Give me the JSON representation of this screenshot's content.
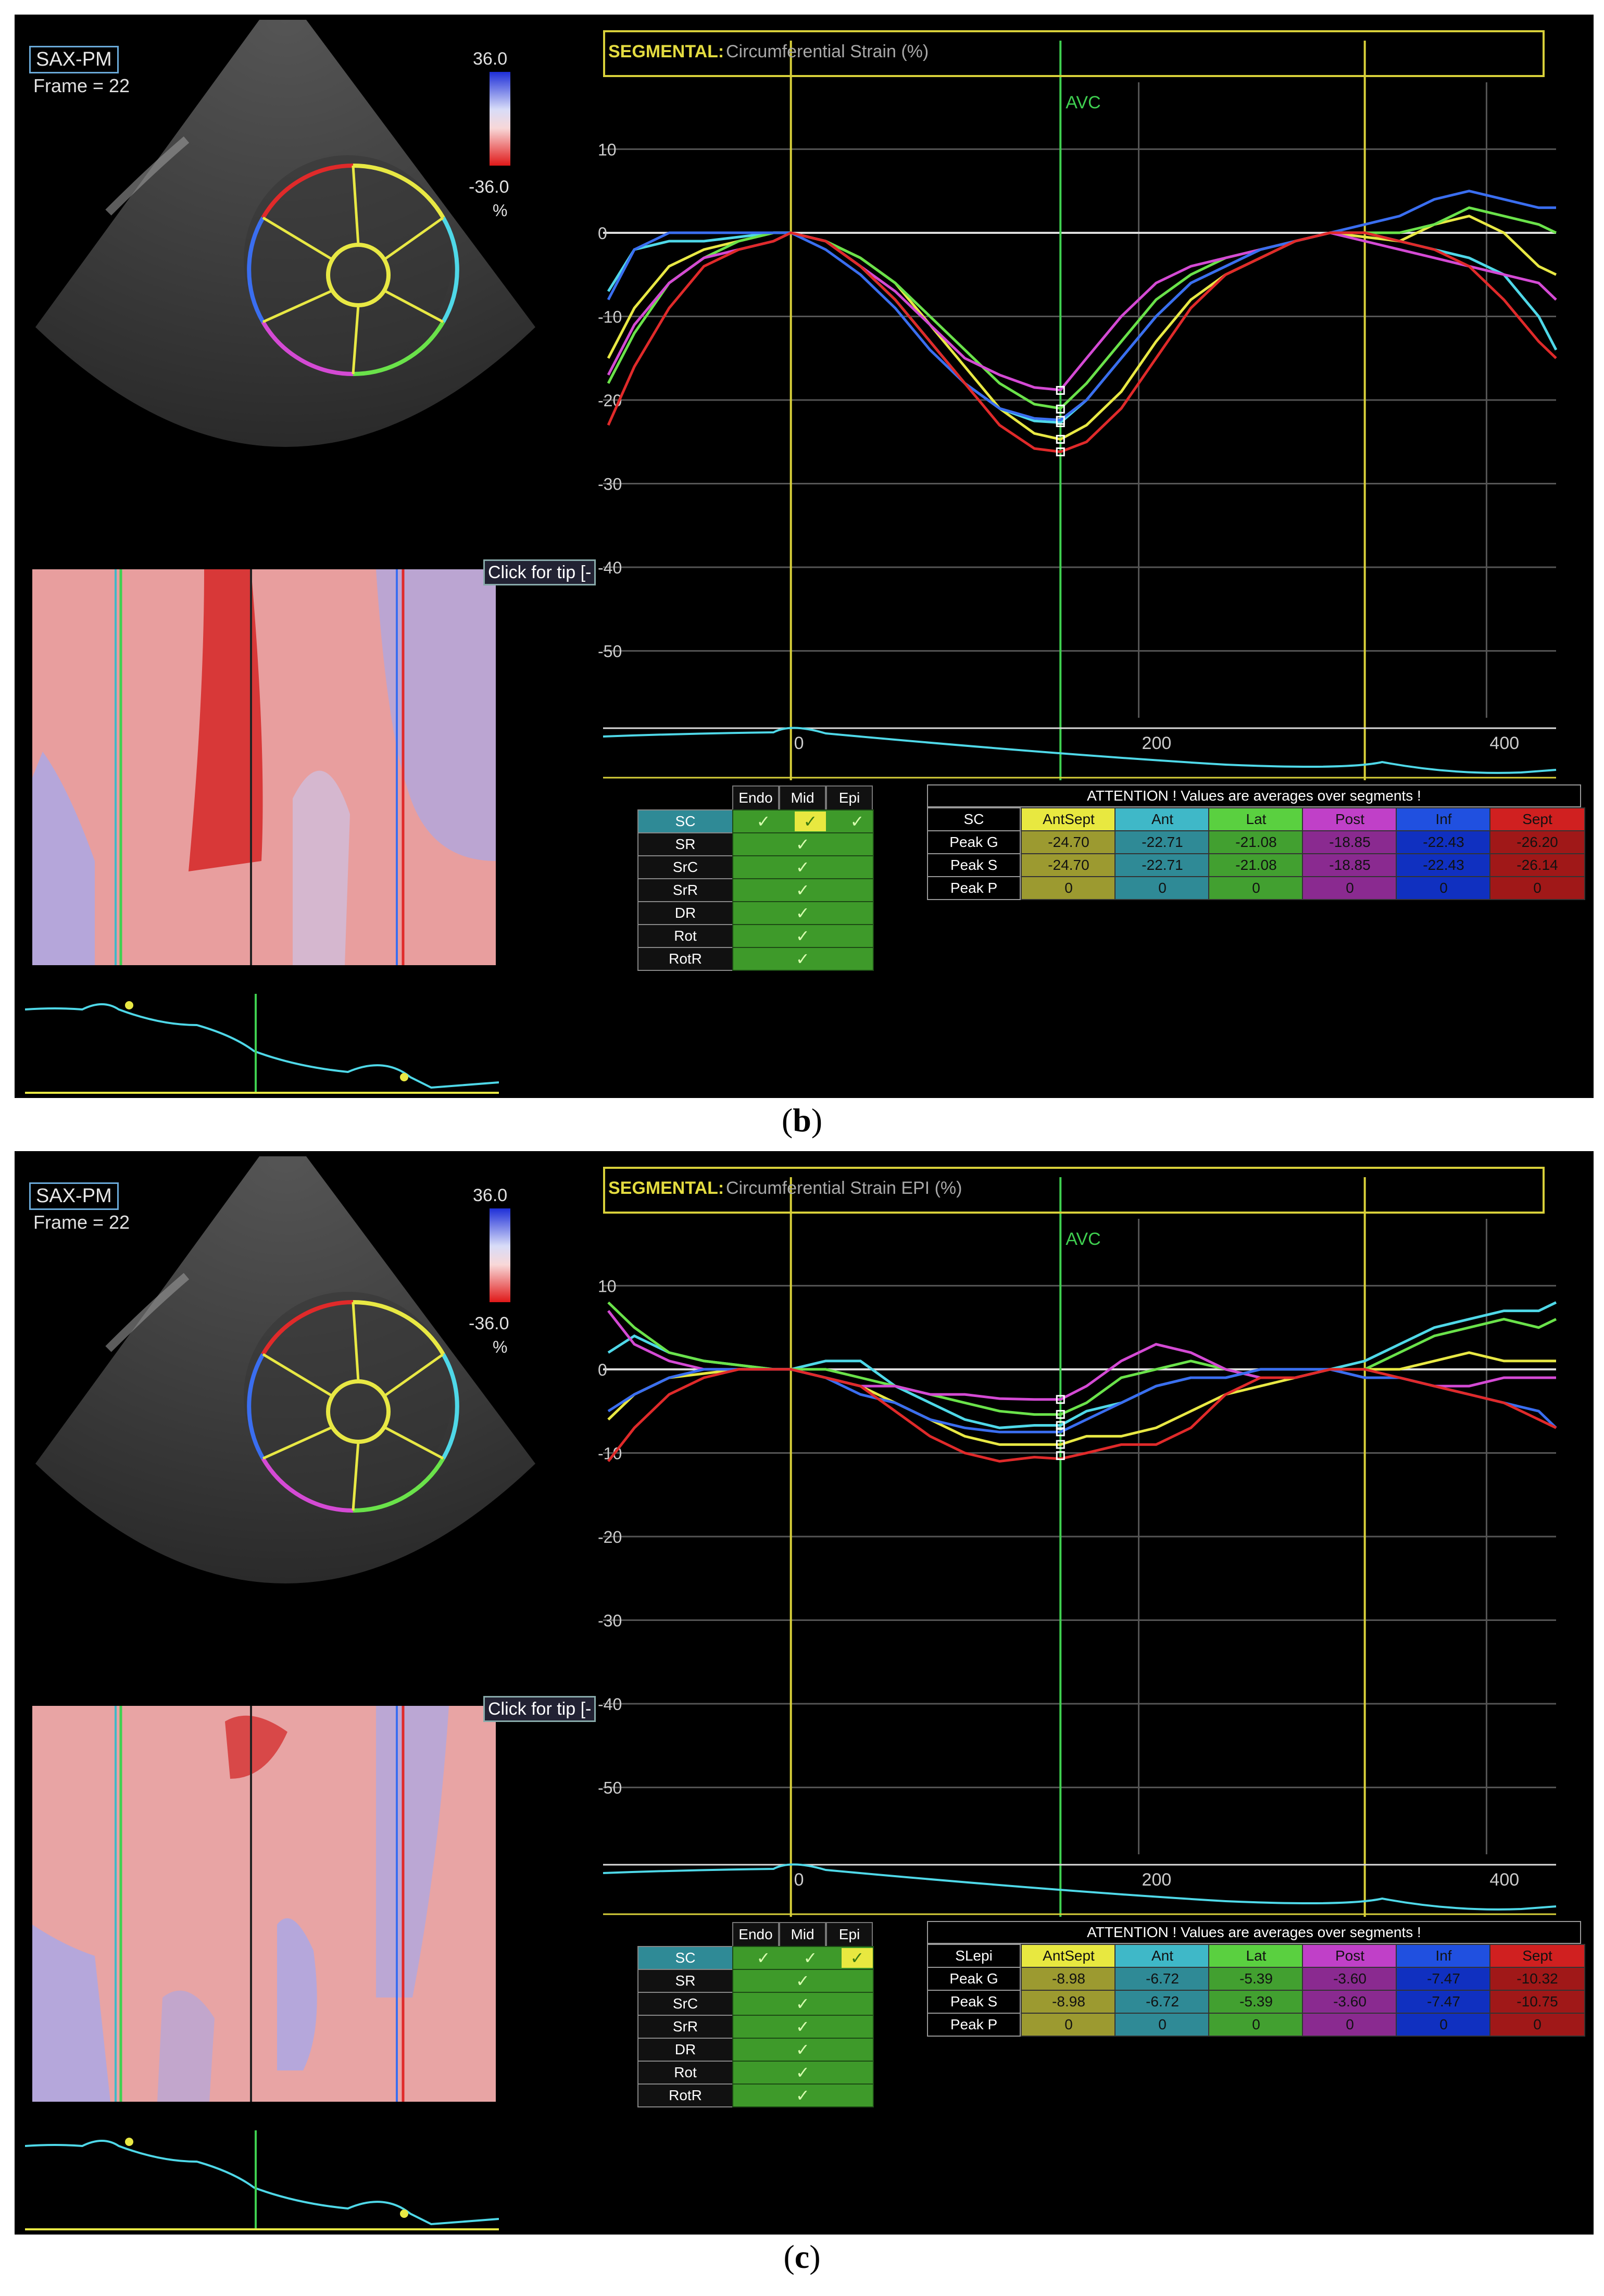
{
  "captions": {
    "b": "b",
    "c": "c"
  },
  "panels": [
    {
      "id": "b",
      "view_label": "SAX-PM",
      "frame_label": "Frame = 22",
      "colorbar": {
        "max": "36.0",
        "min": "-36.0",
        "unit": "%"
      },
      "click_tip": "Click for tip [-",
      "title_key": "SEGMENTAL:",
      "title_value": "Circumferential Strain (%)",
      "avc_label": "AVC",
      "y_ticks": [
        "10",
        "0",
        "-10",
        "-20",
        "-30",
        "-40",
        "-50"
      ],
      "x_ticks": [
        "0",
        "200",
        "400"
      ],
      "layer_table": {
        "headers": [
          "Endo",
          "Mid",
          "Epi"
        ],
        "rows": [
          "SC",
          "SR",
          "SrC",
          "SrR",
          "DR",
          "Rot",
          "RotR"
        ],
        "selected_layer": "Mid"
      },
      "attention": {
        "header": "ATTENTION !  Values are averages over segments !",
        "corner": "SC",
        "segments": [
          "AntSept",
          "Ant",
          "Lat",
          "Post",
          "Inf",
          "Sept"
        ],
        "rows": [
          {
            "label": "Peak G",
            "values": [
              "-24.70",
              "-22.71",
              "-21.08",
              "-18.85",
              "-22.43",
              "-26.20"
            ]
          },
          {
            "label": "Peak S",
            "values": [
              "-24.70",
              "-22.71",
              "-21.08",
              "-18.85",
              "-22.43",
              "-26.14"
            ]
          },
          {
            "label": "Peak P",
            "values": [
              "0",
              "0",
              "0",
              "0",
              "0",
              "0"
            ]
          }
        ]
      }
    },
    {
      "id": "c",
      "view_label": "SAX-PM",
      "frame_label": "Frame = 22",
      "colorbar": {
        "max": "36.0",
        "min": "-36.0",
        "unit": "%"
      },
      "click_tip": "Click for tip [-",
      "title_key": "SEGMENTAL:",
      "title_value": "Circumferential Strain EPI (%)",
      "avc_label": "AVC",
      "y_ticks": [
        "10",
        "0",
        "-10",
        "-20",
        "-30",
        "-40",
        "-50"
      ],
      "x_ticks": [
        "0",
        "200",
        "400"
      ],
      "layer_table": {
        "headers": [
          "Endo",
          "Mid",
          "Epi"
        ],
        "rows": [
          "SC",
          "SR",
          "SrC",
          "SrR",
          "DR",
          "Rot",
          "RotR"
        ],
        "selected_layer": "Epi"
      },
      "attention": {
        "header": "ATTENTION !  Values are averages over segments !",
        "corner": "SLepi",
        "segments": [
          "AntSept",
          "Ant",
          "Lat",
          "Post",
          "Inf",
          "Sept"
        ],
        "rows": [
          {
            "label": "Peak G",
            "values": [
              "-8.98",
              "-6.72",
              "-5.39",
              "-3.60",
              "-7.47",
              "-10.32"
            ]
          },
          {
            "label": "Peak S",
            "values": [
              "-8.98",
              "-6.72",
              "-5.39",
              "-3.60",
              "-7.47",
              "-10.75"
            ]
          },
          {
            "label": "Peak P",
            "values": [
              "0",
              "0",
              "0",
              "0",
              "0",
              "0"
            ]
          }
        ]
      }
    }
  ],
  "segment_colors": [
    "#e8e844",
    "#4fd8e8",
    "#6ae24a",
    "#d44ad4",
    "#3a6ef0",
    "#e02a2a"
  ],
  "segment_cell_colors": [
    "#e8e840",
    "#3fb8c8",
    "#5ad040",
    "#c040c8",
    "#2050e0",
    "#d02020"
  ],
  "segment_cell_colors_dim": [
    "#9c9a30",
    "#2f8a96",
    "#42a030",
    "#8a2a90",
    "#1030c0",
    "#a01818"
  ],
  "chart_data": [
    {
      "type": "line",
      "title": "Circumferential Strain (%)",
      "ylabel": "",
      "xlabel": "",
      "ylim": [
        -58,
        18
      ],
      "xlim": [
        -108,
        440
      ],
      "x": [
        -105,
        -90,
        -70,
        -50,
        -30,
        -10,
        0,
        20,
        40,
        60,
        80,
        100,
        120,
        140,
        155,
        170,
        190,
        210,
        230,
        250,
        270,
        290,
        310,
        330,
        350,
        370,
        390,
        410,
        430,
        440
      ],
      "series": [
        {
          "name": "AntSept",
          "values": [
            -15,
            -9,
            -4,
            -2,
            -1,
            0,
            0,
            -1,
            -3,
            -6,
            -11,
            -16,
            -21,
            -24,
            -24.7,
            -23,
            -19,
            -13,
            -8,
            -5,
            -3,
            -1,
            0,
            -0.5,
            -1,
            1,
            2,
            0,
            -4,
            -5
          ]
        },
        {
          "name": "Ant",
          "values": [
            -7,
            -2,
            -1,
            -1,
            -0.5,
            0,
            0,
            -1,
            -4,
            -8,
            -13,
            -18,
            -21,
            -22.5,
            -22.7,
            -20,
            -15,
            -10,
            -6,
            -4,
            -2,
            -1,
            0,
            0,
            -1,
            -2,
            -3,
            -5,
            -10,
            -14
          ]
        },
        {
          "name": "Lat",
          "values": [
            -18,
            -12,
            -6,
            -3,
            -1,
            0,
            0,
            -1,
            -3,
            -6,
            -10,
            -14,
            -18,
            -20.5,
            -21,
            -18,
            -13,
            -8,
            -5,
            -3,
            -2,
            -1,
            0,
            0,
            0,
            1,
            3,
            2,
            1,
            0
          ]
        },
        {
          "name": "Post",
          "values": [
            -17,
            -11,
            -6,
            -3,
            -2,
            -1,
            0,
            -1,
            -4,
            -7,
            -11,
            -15,
            -17,
            -18.5,
            -18.8,
            -15,
            -10,
            -6,
            -4,
            -3,
            -2,
            -1,
            0,
            -1,
            -2,
            -3,
            -4,
            -5,
            -6,
            -8
          ]
        },
        {
          "name": "Inf",
          "values": [
            -8,
            -2,
            0,
            0,
            0,
            0,
            0,
            -2,
            -5,
            -9,
            -14,
            -18,
            -21,
            -22.2,
            -22.4,
            -20,
            -15,
            -10,
            -6,
            -4,
            -2,
            -1,
            0,
            1,
            2,
            4,
            5,
            4,
            3,
            3
          ]
        },
        {
          "name": "Sept",
          "values": [
            -23,
            -16,
            -9,
            -4,
            -2,
            -1,
            0,
            -1,
            -4,
            -8,
            -13,
            -18,
            -23,
            -25.8,
            -26.2,
            -25,
            -21,
            -15,
            -9,
            -5,
            -3,
            -1,
            0,
            0,
            -1,
            -2,
            -4,
            -8,
            -13,
            -15
          ]
        }
      ]
    },
    {
      "type": "line",
      "title": "Circumferential Strain EPI (%)",
      "ylabel": "",
      "xlabel": "",
      "ylim": [
        -58,
        18
      ],
      "xlim": [
        -108,
        440
      ],
      "x": [
        -105,
        -90,
        -70,
        -50,
        -30,
        -10,
        0,
        20,
        40,
        60,
        80,
        100,
        120,
        140,
        155,
        170,
        190,
        210,
        230,
        250,
        270,
        290,
        310,
        330,
        350,
        370,
        390,
        410,
        430,
        440
      ],
      "series": [
        {
          "name": "AntSept",
          "values": [
            -6,
            -3,
            -1,
            -0.5,
            0,
            0,
            0,
            -1,
            -2,
            -4,
            -6,
            -8,
            -9,
            -9,
            -9,
            -8,
            -8,
            -7,
            -5,
            -3,
            -2,
            -1,
            0,
            0,
            0,
            1,
            2,
            1,
            1,
            1
          ]
        },
        {
          "name": "Ant",
          "values": [
            2,
            4,
            2,
            1,
            0.5,
            0,
            0,
            1,
            1,
            -2,
            -4,
            -6,
            -7,
            -6.7,
            -6.7,
            -5,
            -4,
            -2,
            -1,
            -1,
            0,
            0,
            0,
            1,
            3,
            5,
            6,
            7,
            7,
            8
          ]
        },
        {
          "name": "Lat",
          "values": [
            8,
            5,
            2,
            1,
            0.5,
            0,
            0,
            0,
            -1,
            -2,
            -3,
            -4,
            -5,
            -5.4,
            -5.4,
            -4,
            -1,
            0,
            1,
            0,
            -1,
            -1,
            0,
            0,
            2,
            4,
            5,
            6,
            5,
            6
          ]
        },
        {
          "name": "Post",
          "values": [
            7,
            3,
            1,
            0,
            0,
            0,
            0,
            -1,
            -2,
            -2,
            -3,
            -3,
            -3.5,
            -3.6,
            -3.6,
            -2,
            1,
            3,
            2,
            0,
            -1,
            -1,
            0,
            -1,
            -1,
            -2,
            -2,
            -1,
            -1,
            -1
          ]
        },
        {
          "name": "Inf",
          "values": [
            -5,
            -3,
            -1,
            0,
            0,
            0,
            0,
            -1,
            -3,
            -4,
            -6,
            -7,
            -7.5,
            -7.5,
            -7.5,
            -6,
            -4,
            -2,
            -1,
            -1,
            0,
            0,
            0,
            -1,
            -1,
            -2,
            -3,
            -4,
            -5,
            -7
          ]
        },
        {
          "name": "Sept",
          "values": [
            -11,
            -7,
            -3,
            -1,
            0,
            0,
            0,
            -1,
            -2,
            -5,
            -8,
            -10,
            -11,
            -10.5,
            -10.7,
            -10,
            -9,
            -9,
            -7,
            -3,
            -1,
            -1,
            0,
            0,
            -1,
            -2,
            -3,
            -4,
            -6,
            -7
          ]
        }
      ]
    }
  ]
}
